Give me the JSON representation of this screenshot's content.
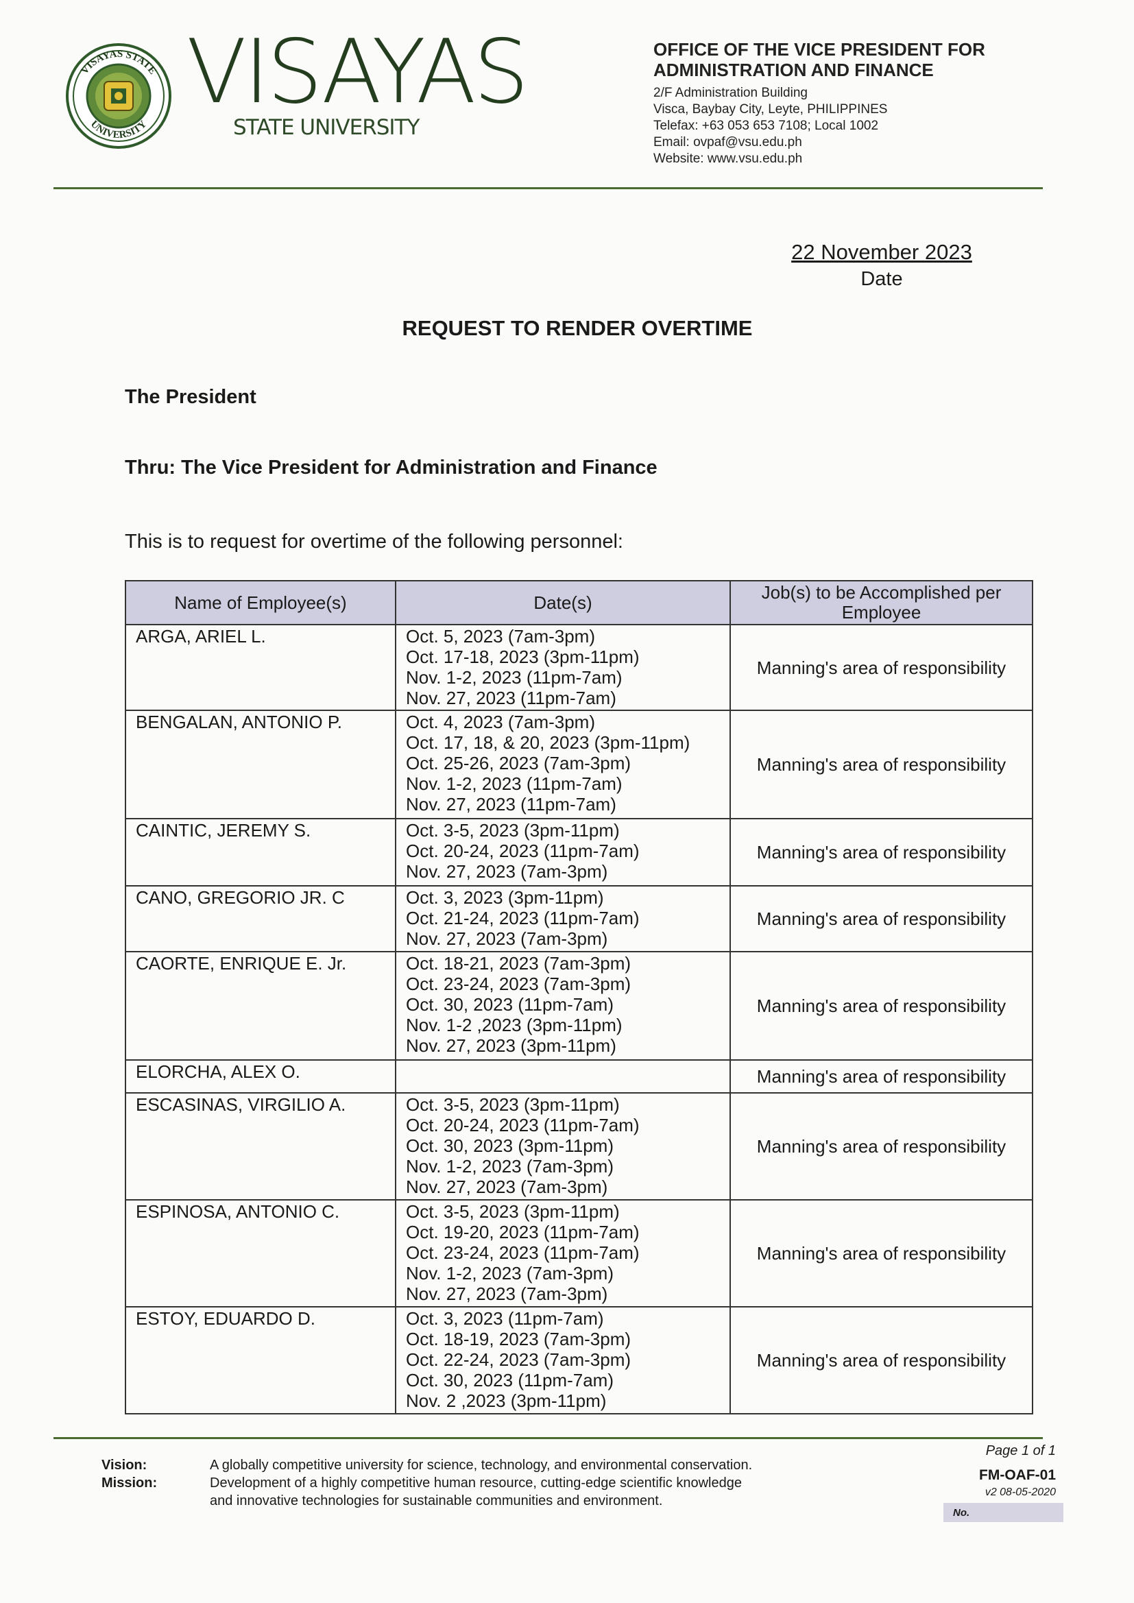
{
  "letterhead": {
    "logo_text": "VISAYAS STATE UNIVERSITY",
    "brand": "VISAYAS",
    "brand_sub": "STATE UNIVERSITY",
    "office_line1": "OFFICE OF THE VICE PRESIDENT FOR",
    "office_line2": "ADMINISTRATION AND FINANCE",
    "address": [
      "2/F Administration Building",
      "Visca, Baybay City, Leyte, PHILIPPINES",
      "Telefax: +63 053 653 7108; Local 1002",
      "Email: ovpaf@vsu.edu.ph",
      "Website: www.vsu.edu.ph"
    ],
    "brand_color": "#253d1f",
    "rule_color": "#4a6b2f"
  },
  "date": {
    "value": "22 November 2023",
    "label": "Date"
  },
  "title": "REQUEST TO RENDER OVERTIME",
  "addressee": "The President",
  "thru": "Thru: The Vice President for Administration and Finance",
  "intro": "This is to request for overtime of the following personnel:",
  "table": {
    "headers": [
      "Name of Employee(s)",
      "Date(s)",
      "Job(s) to be Accomplished per Employee"
    ],
    "header_color": "#cfcde0",
    "rows": [
      {
        "name": "ARGA, ARIEL L.",
        "dates": [
          "Oct. 5, 2023 (7am-3pm)",
          "Oct. 17-18, 2023 (3pm-11pm)",
          "Nov. 1-2, 2023 (11pm-7am)",
          "Nov. 27, 2023 (11pm-7am)"
        ],
        "job": "Manning's area of responsibility"
      },
      {
        "name": "BENGALAN, ANTONIO P.",
        "dates": [
          "Oct. 4, 2023 (7am-3pm)",
          "Oct. 17, 18, & 20, 2023 (3pm-11pm)",
          "Oct. 25-26, 2023 (7am-3pm)",
          "Nov. 1-2, 2023 (11pm-7am)",
          "Nov. 27, 2023 (11pm-7am)"
        ],
        "job": "Manning's area of responsibility"
      },
      {
        "name": "CAINTIC, JEREMY S.",
        "dates": [
          "Oct. 3-5, 2023 (3pm-11pm)",
          "Oct. 20-24, 2023 (11pm-7am)",
          "Nov. 27, 2023 (7am-3pm)"
        ],
        "job": "Manning's area of responsibility"
      },
      {
        "name": "CANO, GREGORIO JR. C",
        "dates": [
          "Oct. 3, 2023 (3pm-11pm)",
          "Oct. 21-24, 2023 (11pm-7am)",
          "Nov. 27, 2023 (7am-3pm)"
        ],
        "job": "Manning's area of responsibility"
      },
      {
        "name": "CAORTE, ENRIQUE E. Jr.",
        "dates": [
          "Oct. 18-21, 2023 (7am-3pm)",
          "Oct. 23-24, 2023 (7am-3pm)",
          "Oct. 30, 2023 (11pm-7am)",
          "Nov. 1-2 ,2023 (3pm-11pm)",
          "Nov. 27, 2023 (3pm-11pm)"
        ],
        "job": "Manning's area of responsibility"
      },
      {
        "name": "ELORCHA, ALEX O.",
        "dates": [],
        "job": "Manning's area of responsibility"
      },
      {
        "name": "ESCASINAS, VIRGILIO A.",
        "dates": [
          "Oct. 3-5, 2023 (3pm-11pm)",
          "Oct. 20-24, 2023 (11pm-7am)",
          "Oct. 30, 2023 (3pm-11pm)",
          "Nov. 1-2, 2023 (7am-3pm)",
          "Nov. 27, 2023 (7am-3pm)"
        ],
        "job": "Manning's area of responsibility"
      },
      {
        "name": "ESPINOSA, ANTONIO C.",
        "dates": [
          "Oct. 3-5, 2023 (3pm-11pm)",
          "Oct. 19-20, 2023 (11pm-7am)",
          "Oct. 23-24, 2023 (11pm-7am)",
          "Nov. 1-2, 2023 (7am-3pm)",
          "Nov. 27, 2023 (7am-3pm)"
        ],
        "job": "Manning's area of responsibility"
      },
      {
        "name": "ESTOY, EDUARDO D.",
        "dates": [
          "Oct. 3, 2023 (11pm-7am)",
          "Oct. 18-19, 2023 (7am-3pm)",
          "Oct. 22-24, 2023 (7am-3pm)",
          "Oct. 30, 2023 (11pm-7am)",
          "Nov. 2 ,2023 (3pm-11pm)"
        ],
        "job": "Manning's area of responsibility"
      }
    ]
  },
  "footer": {
    "vision_label": "Vision:",
    "vision": "A globally competitive university for science, technology, and environmental conservation.",
    "mission_label": "Mission:",
    "mission_line1": "Development of a highly competitive human resource, cutting-edge scientific knowledge",
    "mission_line2": "and innovative technologies for sustainable communities and environment.",
    "page": "Page 1 of 1",
    "form_code": "FM-OAF-01",
    "version": "v2 08-05-2020",
    "no_label": "No."
  }
}
